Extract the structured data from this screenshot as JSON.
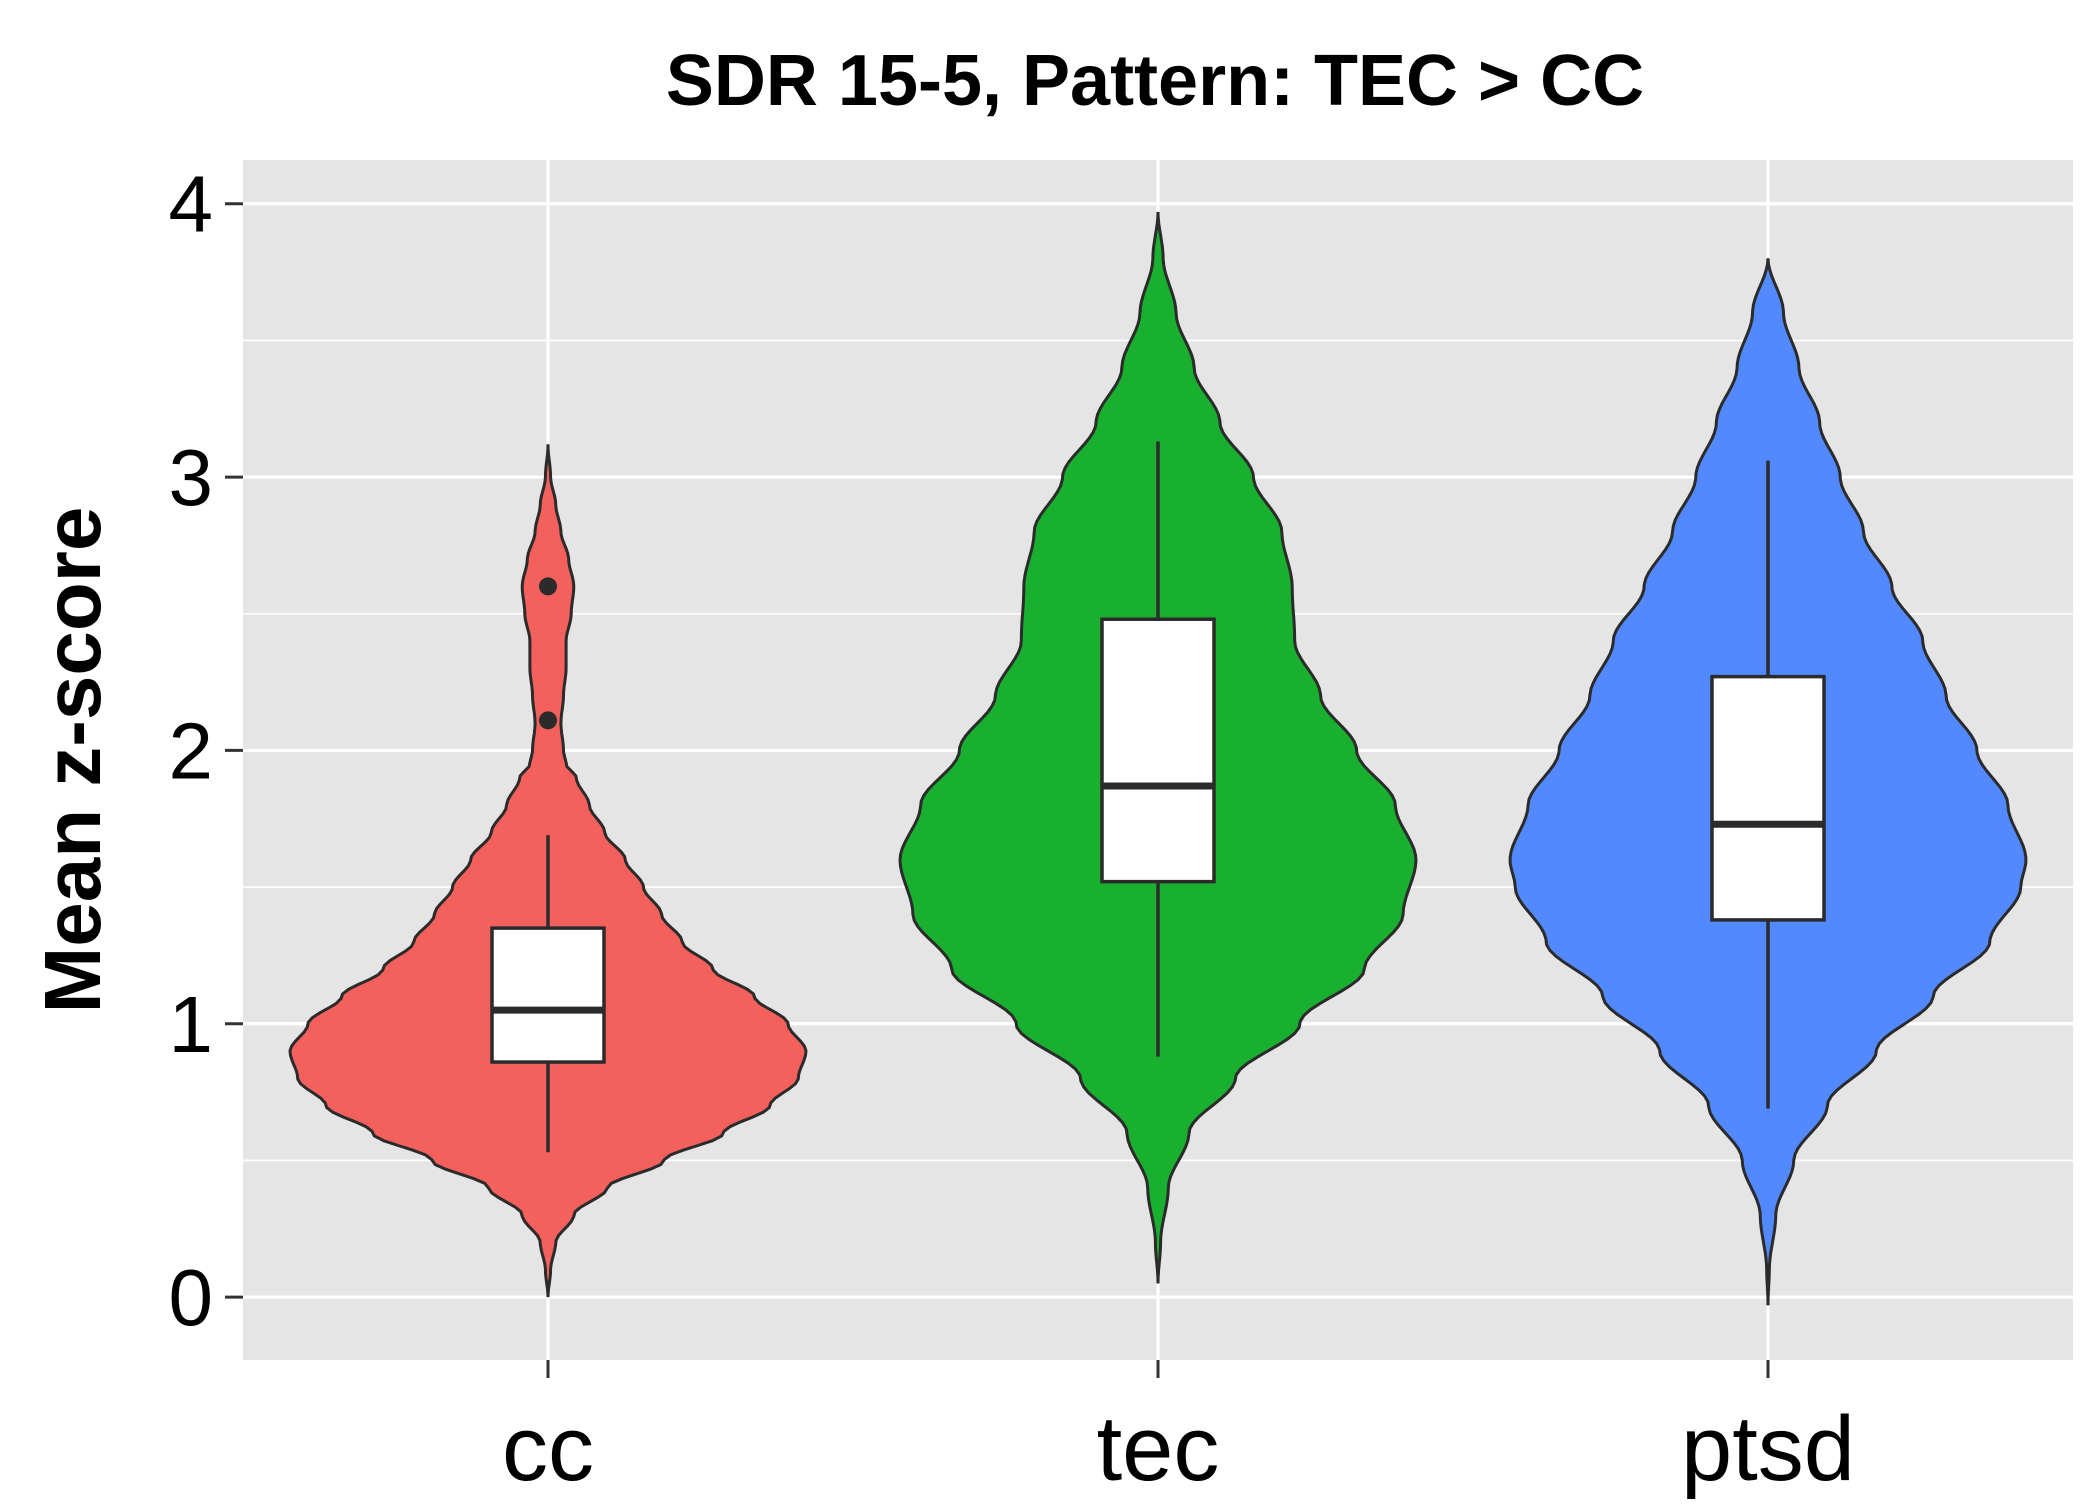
{
  "chart_data": {
    "type": "violin",
    "title": "SDR 15-5, Pattern: TEC > CC",
    "xlabel": "",
    "ylabel": "Mean z-score",
    "ylim": [
      -0.23,
      4.16
    ],
    "yticks": [
      0,
      1,
      2,
      3,
      4
    ],
    "y_minor_gridlines": [
      0.5,
      1.5,
      2.5,
      3.5
    ],
    "grid": true,
    "legend": "none",
    "categories": [
      "cc",
      "tec",
      "ptsd"
    ],
    "colors": {
      "cc": "#F4615D",
      "tec": "#18B02E",
      "ptsd": "#5289FE",
      "panel": "#E5E5E5",
      "grid": "#FFFFFF",
      "outline": "#2B2B2B",
      "box_fill": "#FFFFFF"
    },
    "series": [
      {
        "category": "cc",
        "violin": {
          "min": 0.0,
          "max": 3.12,
          "profile": [
            [
              0.0,
              0.0
            ],
            [
              0.1,
              0.01
            ],
            [
              0.2,
              0.03
            ],
            [
              0.3,
              0.1
            ],
            [
              0.4,
              0.23
            ],
            [
              0.5,
              0.45
            ],
            [
              0.6,
              0.68
            ],
            [
              0.7,
              0.86
            ],
            [
              0.8,
              0.97
            ],
            [
              0.9,
              1.0
            ],
            [
              1.0,
              0.93
            ],
            [
              1.1,
              0.8
            ],
            [
              1.2,
              0.64
            ],
            [
              1.3,
              0.52
            ],
            [
              1.4,
              0.44
            ],
            [
              1.5,
              0.37
            ],
            [
              1.6,
              0.3
            ],
            [
              1.7,
              0.22
            ],
            [
              1.8,
              0.16
            ],
            [
              1.9,
              0.11
            ],
            [
              1.95,
              0.07
            ],
            [
              2.0,
              0.06
            ],
            [
              2.1,
              0.05
            ],
            [
              2.2,
              0.06
            ],
            [
              2.3,
              0.07
            ],
            [
              2.4,
              0.07
            ],
            [
              2.5,
              0.09
            ],
            [
              2.6,
              0.1
            ],
            [
              2.7,
              0.08
            ],
            [
              2.8,
              0.05
            ],
            [
              2.9,
              0.03
            ],
            [
              3.0,
              0.01
            ],
            [
              3.12,
              0.0
            ]
          ]
        },
        "box": {
          "whisker_low": 0.53,
          "q1": 0.86,
          "median": 1.05,
          "q3": 1.35,
          "whisker_high": 1.69
        },
        "outliers": [
          2.11,
          2.6
        ]
      },
      {
        "category": "tec",
        "violin": {
          "min": 0.05,
          "max": 3.97,
          "profile": [
            [
              0.05,
              0.0
            ],
            [
              0.2,
              0.01
            ],
            [
              0.4,
              0.04
            ],
            [
              0.6,
              0.12
            ],
            [
              0.8,
              0.3
            ],
            [
              1.0,
              0.55
            ],
            [
              1.2,
              0.8
            ],
            [
              1.4,
              0.95
            ],
            [
              1.6,
              1.0
            ],
            [
              1.8,
              0.92
            ],
            [
              2.0,
              0.77
            ],
            [
              2.2,
              0.63
            ],
            [
              2.4,
              0.53
            ],
            [
              2.6,
              0.52
            ],
            [
              2.8,
              0.48
            ],
            [
              3.0,
              0.37
            ],
            [
              3.2,
              0.24
            ],
            [
              3.4,
              0.14
            ],
            [
              3.6,
              0.07
            ],
            [
              3.8,
              0.02
            ],
            [
              3.97,
              0.0
            ]
          ]
        },
        "box": {
          "whisker_low": 0.88,
          "q1": 1.52,
          "median": 1.87,
          "q3": 2.48,
          "whisker_high": 3.13
        },
        "outliers": []
      },
      {
        "category": "ptsd",
        "violin": {
          "min": -0.03,
          "max": 3.8,
          "profile": [
            [
              -0.03,
              0.0
            ],
            [
              0.1,
              0.005
            ],
            [
              0.3,
              0.03
            ],
            [
              0.5,
              0.1
            ],
            [
              0.7,
              0.23
            ],
            [
              0.9,
              0.42
            ],
            [
              1.1,
              0.64
            ],
            [
              1.3,
              0.86
            ],
            [
              1.5,
              0.98
            ],
            [
              1.6,
              1.0
            ],
            [
              1.8,
              0.93
            ],
            [
              2.0,
              0.81
            ],
            [
              2.2,
              0.69
            ],
            [
              2.4,
              0.6
            ],
            [
              2.6,
              0.48
            ],
            [
              2.8,
              0.37
            ],
            [
              3.0,
              0.28
            ],
            [
              3.2,
              0.2
            ],
            [
              3.4,
              0.12
            ],
            [
              3.6,
              0.06
            ],
            [
              3.8,
              0.0
            ]
          ]
        },
        "box": {
          "whisker_low": 0.69,
          "q1": 1.38,
          "median": 1.73,
          "q3": 2.27,
          "whisker_high": 3.06
        },
        "outliers": []
      }
    ]
  }
}
